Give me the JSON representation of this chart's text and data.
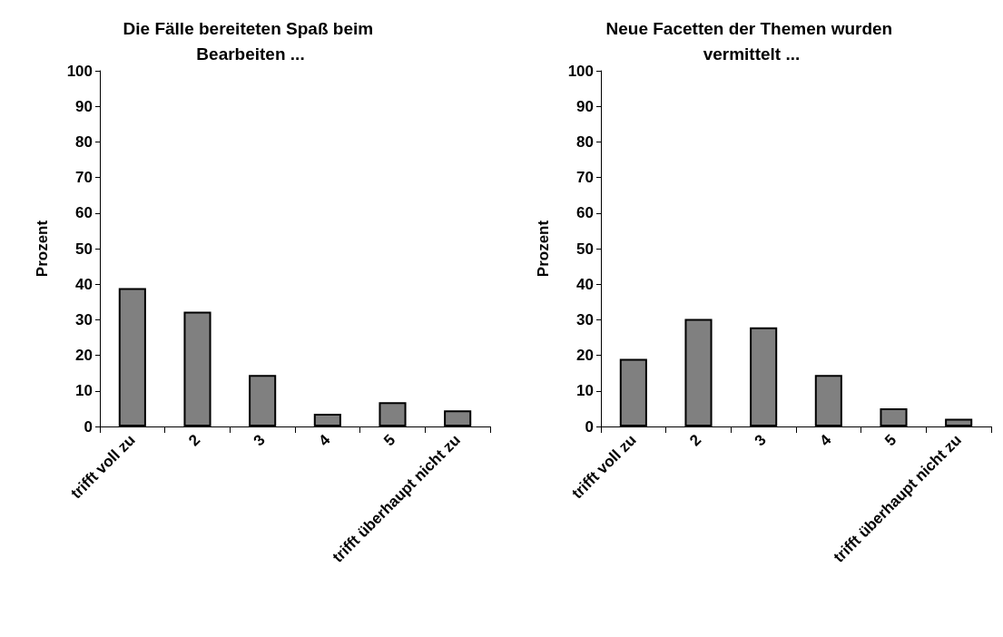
{
  "chart_data": [
    {
      "type": "bar",
      "title": "Die Fälle bereiteten Spaß beim Bearbeiten ...",
      "ylabel": "Prozent",
      "categories": [
        "trifft voll zu",
        "2",
        "3",
        "4",
        "5",
        "trifft überhaupt nicht zu"
      ],
      "values": [
        38.9,
        32.3,
        14.5,
        3.6,
        6.8,
        4.5
      ],
      "color": "#808080",
      "ylim": [
        0,
        100
      ],
      "yticks": [
        0,
        10,
        20,
        30,
        40,
        50,
        60,
        70,
        80,
        90,
        100
      ]
    },
    {
      "type": "bar",
      "title": "Neue Facetten der Themen wurden vermittelt ...",
      "ylabel": "Prozent",
      "categories": [
        "trifft voll zu",
        "2",
        "3",
        "4",
        "5",
        "trifft überhaupt nicht zu"
      ],
      "values": [
        19.0,
        30.2,
        27.9,
        14.5,
        5.1,
        2.2
      ],
      "color": "#808080",
      "ylim": [
        0,
        100
      ],
      "yticks": [
        0,
        10,
        20,
        30,
        40,
        50,
        60,
        70,
        80,
        90,
        100
      ]
    }
  ]
}
